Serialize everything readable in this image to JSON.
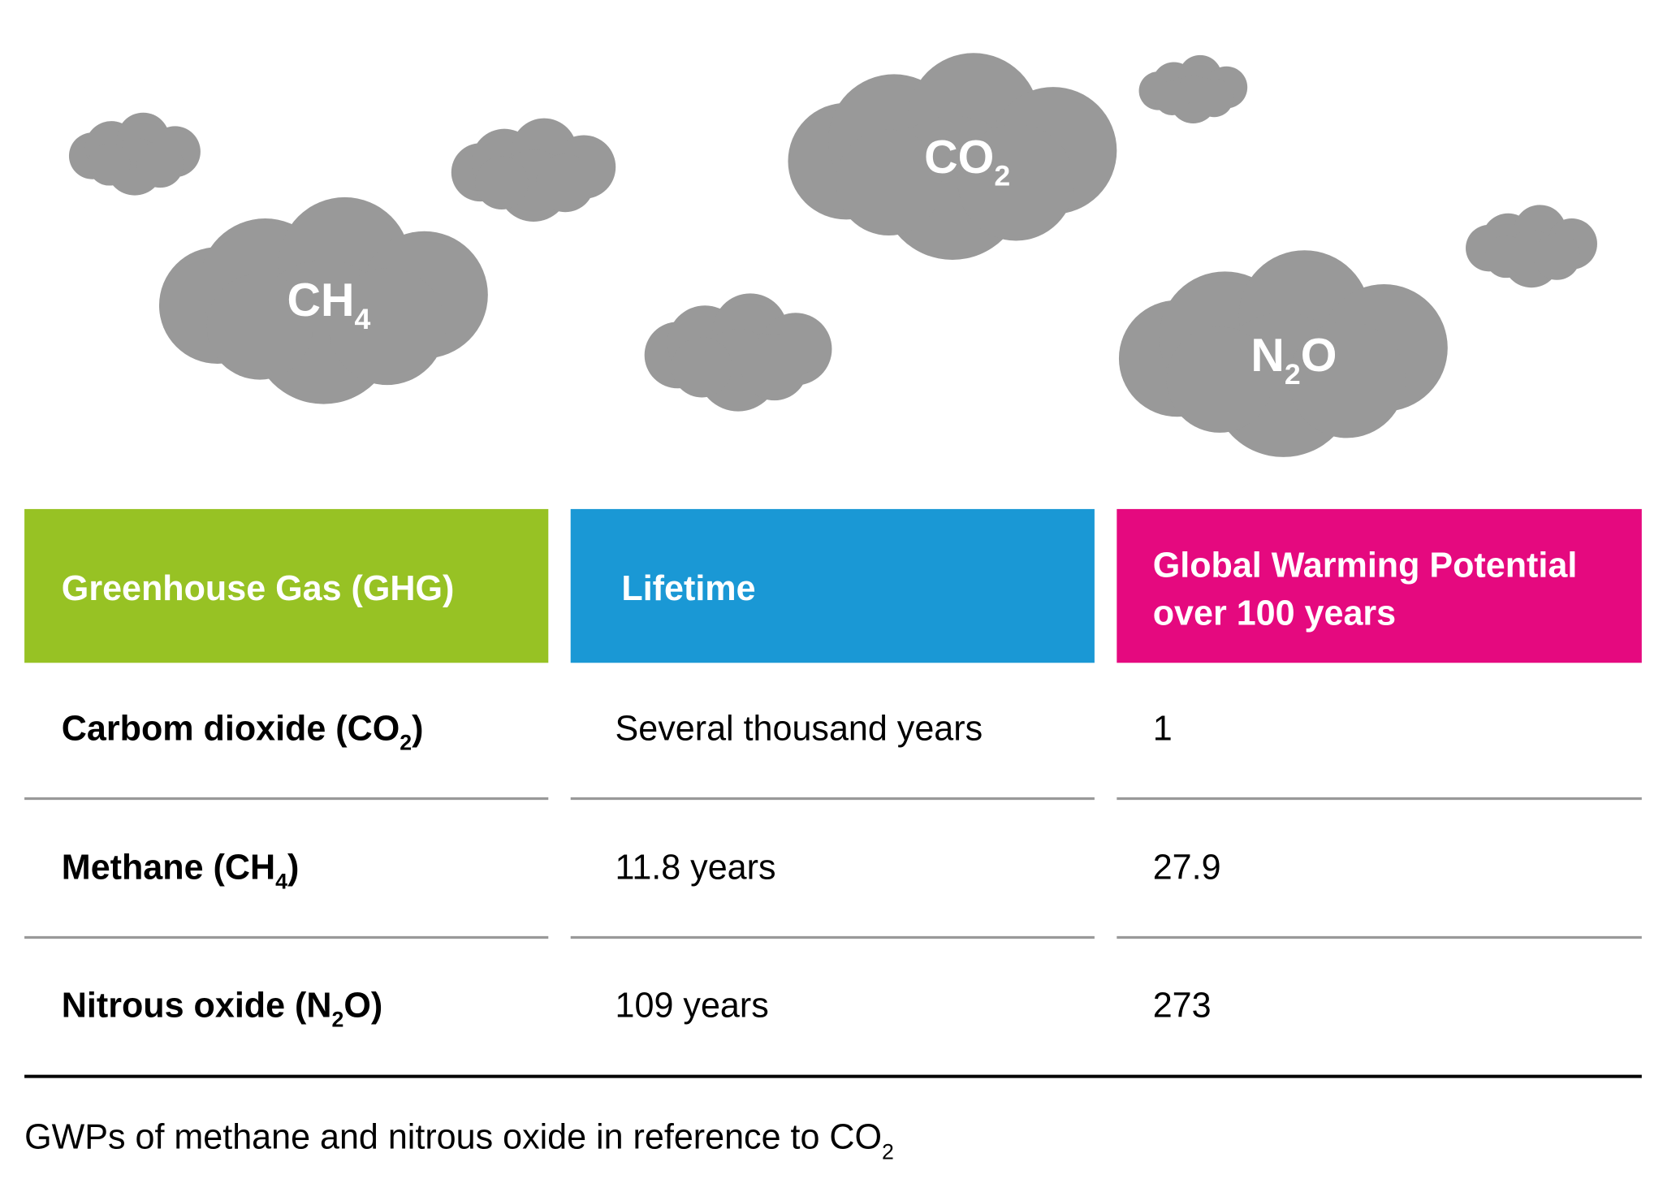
{
  "clouds": [
    {
      "label": [
        "CH",
        "4"
      ]
    },
    {
      "label": [
        "CO",
        "2"
      ]
    },
    {
      "label": [
        "N",
        "2",
        "O"
      ]
    }
  ],
  "table": {
    "headers": [
      [
        "Greenhouse Gas (GHG)"
      ],
      [
        "Lifetime"
      ],
      [
        "Global Warming Potential",
        "over 100 years"
      ]
    ],
    "rows": [
      [
        [
          "Carbom dioxide (CO",
          "2",
          ")"
        ],
        "Several thousand years",
        1
      ],
      [
        [
          "Methane (CH",
          "4",
          ")"
        ],
        "11.8 years",
        27.9
      ],
      [
        [
          "Nitrous oxide (N",
          "2",
          "O)"
        ],
        "109 years",
        273
      ]
    ]
  },
  "footnote": [
    "GWPs of methane and nitrous oxide in reference to CO",
    "2"
  ]
}
